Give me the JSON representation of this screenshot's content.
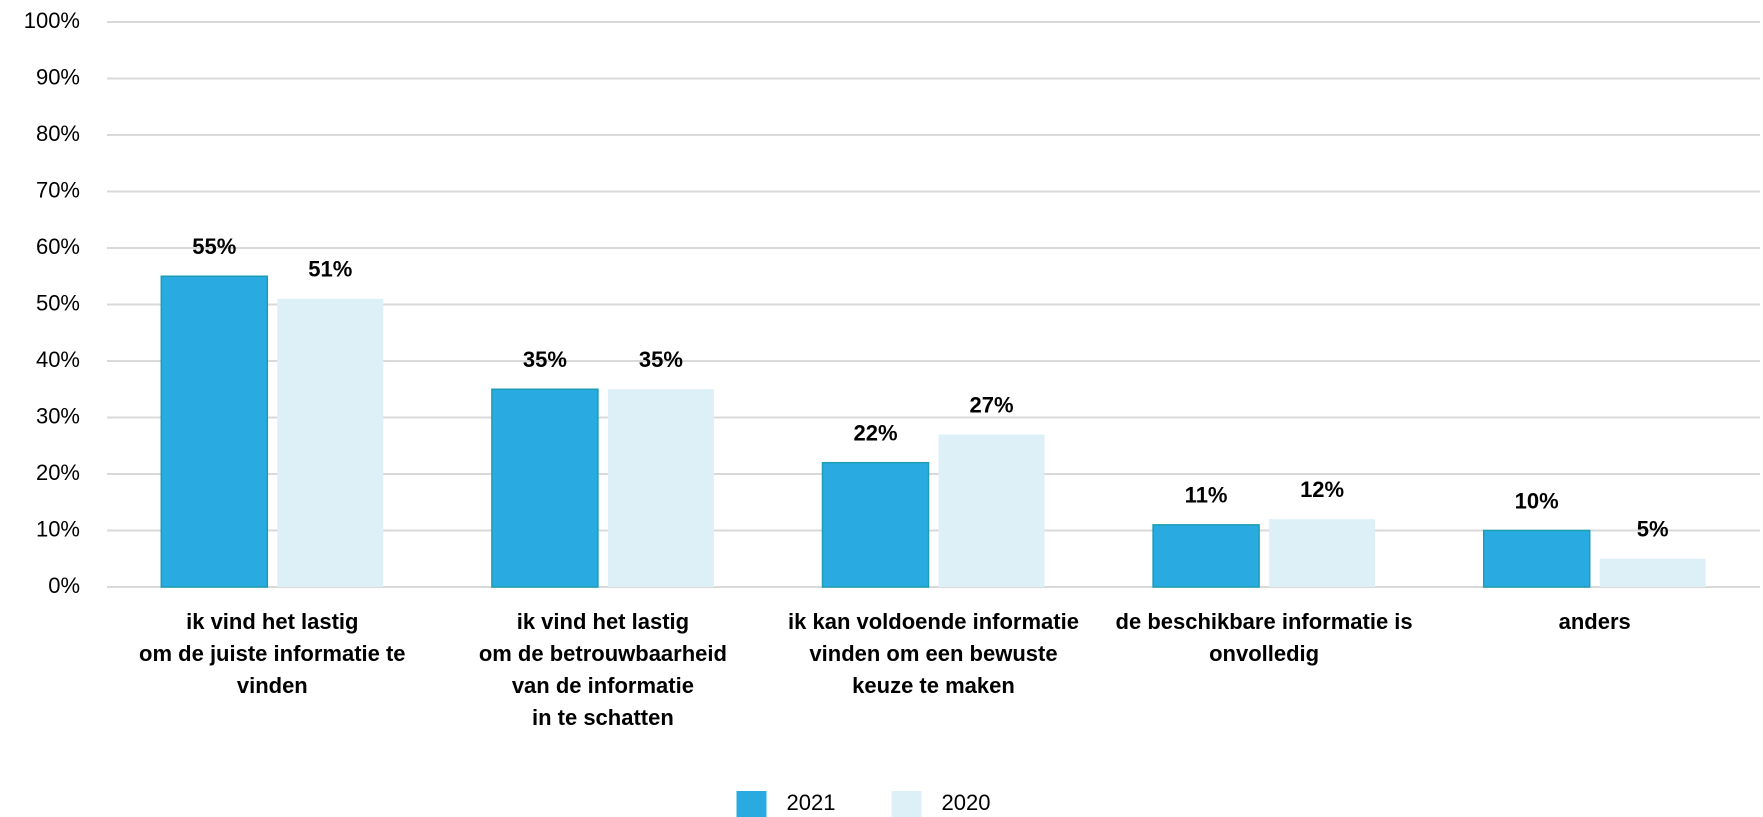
{
  "chart_data": {
    "type": "bar",
    "categories": [
      [
        "ik vind het lastig",
        "om de juiste informatie te",
        "vinden"
      ],
      [
        "ik vind het lastig",
        "om de betrouwbaarheid",
        "van de informatie",
        "in te schatten"
      ],
      [
        "ik kan voldoende informatie",
        "vinden om een bewuste",
        "keuze te maken"
      ],
      [
        "de beschikbare informatie is",
        "onvolledig"
      ],
      [
        "anders"
      ]
    ],
    "series": [
      {
        "name": "2021",
        "color": "#29abe2",
        "stroke": "#1b9eb4",
        "values": [
          55,
          35,
          22,
          11,
          10
        ],
        "value_labels": [
          "55%",
          "35%",
          "22%",
          "11%",
          "10%"
        ]
      },
      {
        "name": "2020",
        "color": "#ddf0f8",
        "values": [
          51,
          35,
          27,
          12,
          5
        ],
        "value_labels": [
          "51%",
          "35%",
          "27%",
          "12%",
          "5%"
        ]
      }
    ],
    "ylim": [
      0,
      100
    ],
    "yticks": [
      {
        "value": 0,
        "label": "0%"
      },
      {
        "value": 10,
        "label": "10%"
      },
      {
        "value": 20,
        "label": "20%"
      },
      {
        "value": 30,
        "label": "30%"
      },
      {
        "value": 40,
        "label": "40%"
      },
      {
        "value": 50,
        "label": "50%"
      },
      {
        "value": 60,
        "label": "60%"
      },
      {
        "value": 70,
        "label": "70%"
      },
      {
        "value": 80,
        "label": "80%"
      },
      {
        "value": 90,
        "label": "90%"
      },
      {
        "value": 100,
        "label": "100%"
      }
    ],
    "grid": true,
    "legend": "bottom"
  }
}
